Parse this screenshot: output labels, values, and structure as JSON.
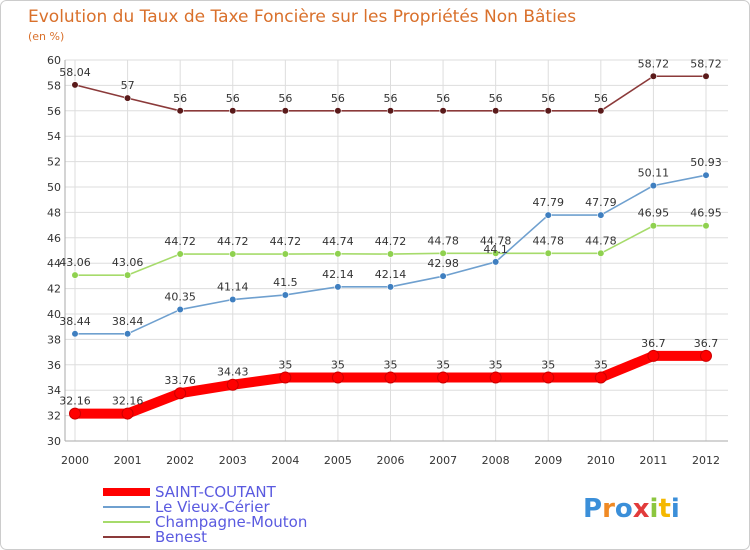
{
  "chart_data": {
    "type": "line",
    "title": "Evolution du Taux de Taxe Foncière sur les Propriétés Non Bâties",
    "subtitle": "(en %)",
    "xlabel": "",
    "ylabel": "(en %)",
    "x": [
      "2000",
      "2001",
      "2002",
      "2003",
      "2004",
      "2005",
      "2006",
      "2007",
      "2008",
      "2009",
      "2010",
      "2011",
      "2012"
    ],
    "ylim": [
      30,
      60
    ],
    "ytick_step": 2,
    "grid": true,
    "legend_position": "bottom-left",
    "series": [
      {
        "name": "SAINT-COUTANT",
        "color": "#ff0000",
        "point_color": "#ff0000",
        "emphasis": "thick",
        "values": [
          32.16,
          32.16,
          33.76,
          34.43,
          35,
          35,
          35,
          35,
          35,
          35,
          35,
          36.7,
          36.7
        ],
        "labels": [
          "32.16",
          "32.16",
          "33.76",
          "34.43",
          "35",
          "35",
          "35",
          "35",
          "35",
          "35",
          "35",
          "36.7",
          "36.7"
        ]
      },
      {
        "name": "Le Vieux-Cérier",
        "color": "#6fa0cf",
        "point_color": "#3f7fc0",
        "emphasis": "normal",
        "values": [
          38.44,
          38.44,
          40.35,
          41.14,
          41.5,
          42.14,
          42.14,
          42.98,
          44.1,
          47.79,
          47.79,
          50.11,
          50.93
        ],
        "labels": [
          "38.44",
          "38.44",
          "40.35",
          "41.14",
          "41.5",
          "42.14",
          "42.14",
          "42.98",
          "44.1",
          "47.79",
          "47.79",
          "50.11",
          "50.93"
        ]
      },
      {
        "name": "Champagne-Mouton",
        "color": "#a6db6b",
        "point_color": "#8fd14f",
        "emphasis": "normal",
        "values": [
          43.06,
          43.06,
          44.72,
          44.72,
          44.72,
          44.74,
          44.72,
          44.78,
          44.78,
          44.78,
          44.78,
          46.95,
          46.95
        ],
        "labels": [
          "43.06",
          "43.06",
          "44.72",
          "44.72",
          "44.72",
          "44.74",
          "44.72",
          "44.78",
          "44.78",
          "44.78",
          "44.78",
          "46.95",
          "46.95"
        ]
      },
      {
        "name": "Benest",
        "color": "#8b3a3a",
        "point_color": "#5a1a1a",
        "emphasis": "normal",
        "values": [
          58.04,
          57,
          56,
          56,
          56,
          56,
          56,
          56,
          56,
          56,
          56,
          58.72,
          58.72
        ],
        "labels": [
          "58.04",
          "57",
          "56",
          "56",
          "56",
          "56",
          "56",
          "56",
          "56",
          "56",
          "56",
          "58.72",
          "58.72"
        ]
      }
    ]
  },
  "branding": {
    "logo_text": "Proxiti",
    "logo_colors": [
      "#3b8fd9",
      "#f08a24",
      "#3b8fd9",
      "#e23b3b",
      "#8cc63f",
      "#f5b800",
      "#3b8fd9"
    ]
  }
}
